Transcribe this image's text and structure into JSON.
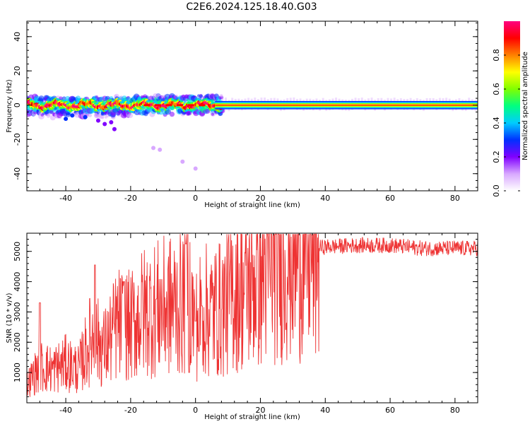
{
  "title": "C2E6.2024.125.18.40.G03",
  "chart_data": [
    {
      "type": "heatmap",
      "xlabel": "Height of straight line (km)",
      "ylabel": "Frequency (Hz)",
      "xlim": [
        -52,
        87
      ],
      "ylim": [
        -50,
        49
      ],
      "xticks": [
        -40,
        -20,
        0,
        20,
        40,
        60,
        80
      ],
      "yticks": [
        -40,
        -20,
        0,
        20,
        40
      ],
      "colorbar": {
        "label": "Normalized spectral amplitude",
        "range": [
          0,
          1
        ],
        "ticks": [
          "0.0",
          "0.2",
          "0.4",
          "0.6",
          "0.8"
        ],
        "tick_values": [
          0,
          0.2,
          0.4,
          0.6,
          0.8
        ],
        "colormap": [
          "#ffffff",
          "#d8a8ff",
          "#8000ff",
          "#0030ff",
          "#00ccff",
          "#00ff80",
          "#80ff00",
          "#ffff00",
          "#ff8000",
          "#ff0000",
          "#ff0080"
        ]
      },
      "scatter_outliers": [
        {
          "x": -40,
          "y": -8,
          "amp": 0.3
        },
        {
          "x": -38,
          "y": -6,
          "amp": 0.25
        },
        {
          "x": -34,
          "y": -7,
          "amp": 0.25
        },
        {
          "x": -30,
          "y": -9,
          "amp": 0.2
        },
        {
          "x": -28,
          "y": -11,
          "amp": 0.2
        },
        {
          "x": -26,
          "y": -10,
          "amp": 0.2
        },
        {
          "x": -25,
          "y": -14,
          "amp": 0.15
        },
        {
          "x": -13,
          "y": -25,
          "amp": 0.1
        },
        {
          "x": -11,
          "y": -26,
          "amp": 0.1
        },
        {
          "x": -4,
          "y": -33,
          "amp": 0.08
        },
        {
          "x": 0,
          "y": -37,
          "amp": 0.06
        }
      ]
    },
    {
      "type": "line",
      "xlabel": "Height of straight line (km)",
      "ylabel": "SNR (10 * v/v)",
      "xlim": [
        -52,
        87
      ],
      "ylim": [
        0,
        5600
      ],
      "xticks": [
        -40,
        -20,
        0,
        20,
        40,
        60,
        80
      ],
      "yticks": [
        1000,
        2000,
        3000,
        4000,
        5000
      ],
      "color": "#ee3333",
      "envelope": {
        "x": [
          -52,
          -48,
          -44,
          -40,
          -36,
          -32,
          -28,
          -24,
          -20,
          -16,
          -12,
          -8,
          -4,
          -2,
          0,
          2,
          4,
          8,
          12,
          16,
          20,
          24,
          28,
          32,
          36,
          40,
          50,
          60,
          70,
          80,
          87
        ],
        "y": [
          600,
          1200,
          1100,
          1300,
          1100,
          2200,
          1800,
          2600,
          2500,
          3000,
          3100,
          3200,
          3300,
          3600,
          2500,
          3100,
          3000,
          3100,
          3700,
          3900,
          4200,
          4700,
          4950,
          5050,
          5100,
          5150,
          5200,
          5200,
          5100,
          5100,
          5100
        ]
      },
      "spikes": [
        {
          "x": -48,
          "y": 3300
        },
        {
          "x": -31,
          "y": 4550
        },
        {
          "x": -22,
          "y": 4000
        },
        {
          "x": -3,
          "y": 5250
        },
        {
          "x": -2,
          "y": 1000
        },
        {
          "x": 0,
          "y": 2700
        },
        {
          "x": 1,
          "y": 1700
        },
        {
          "x": 2,
          "y": 3200
        }
      ]
    }
  ]
}
